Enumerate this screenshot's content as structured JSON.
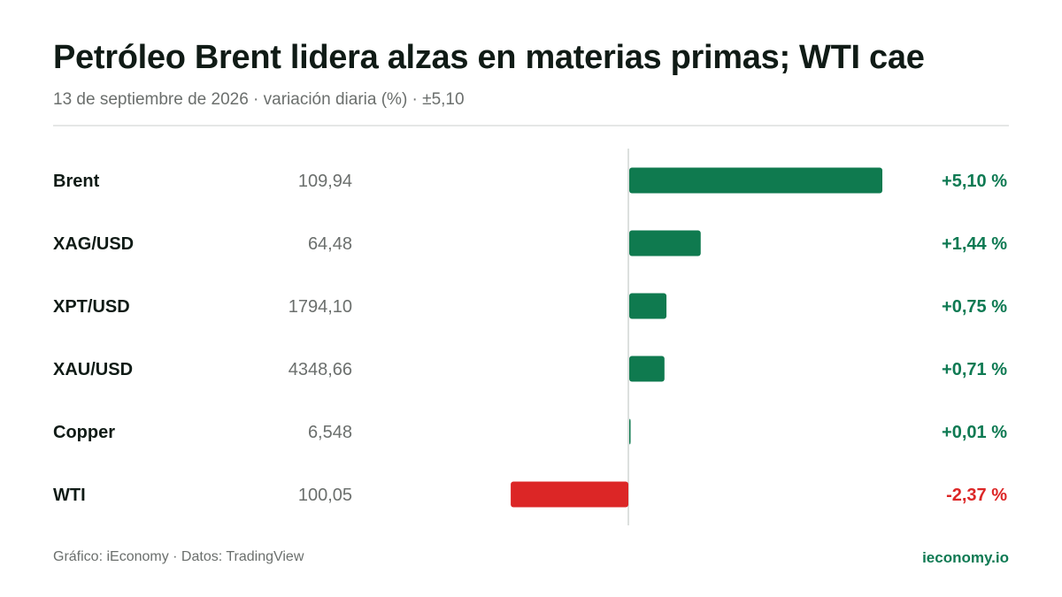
{
  "header": {
    "title": "Petróleo Brent lidera alzas en materias primas; WTI cae",
    "subtitle": "13 de septiembre de 2026 · variación diaria (%) · ±5,10"
  },
  "footer": {
    "source": "Gráfico: iEconomy · Datos: TradingView",
    "brand": "ieconomy.io"
  },
  "colors": {
    "positive": "#0f7a4f",
    "negative": "#dc2626",
    "positive_text": "#0f7a53",
    "axis": "#d1d5d3"
  },
  "chart_data": {
    "type": "bar",
    "orientation": "horizontal",
    "scale_max_abs": 5.1,
    "rows": [
      {
        "name": "Brent",
        "price": "109,94",
        "change": 5.1,
        "change_label": "+5,10 %"
      },
      {
        "name": "XAG/USD",
        "price": "64,48",
        "change": 1.44,
        "change_label": "+1,44 %"
      },
      {
        "name": "XPT/USD",
        "price": "1794,10",
        "change": 0.75,
        "change_label": "+0,75 %"
      },
      {
        "name": "XAU/USD",
        "price": "4348,66",
        "change": 0.71,
        "change_label": "+0,71 %"
      },
      {
        "name": "Copper",
        "price": "6,548",
        "change": 0.01,
        "change_label": "+0,01 %"
      },
      {
        "name": "WTI",
        "price": "100,05",
        "change": -2.37,
        "change_label": "-2,37 %"
      }
    ]
  }
}
